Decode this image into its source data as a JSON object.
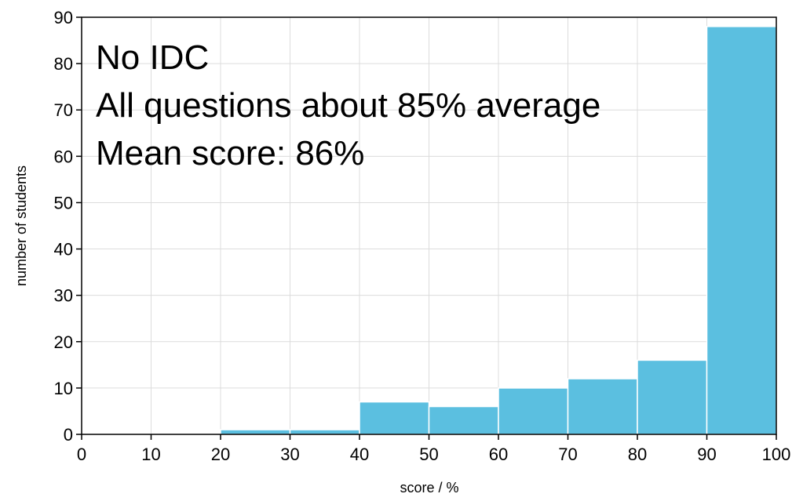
{
  "chart_data": {
    "type": "bar",
    "title": "",
    "xlabel": "score / %",
    "ylabel": "number of students",
    "xlim": [
      0,
      100
    ],
    "ylim": [
      0,
      90
    ],
    "xticks": [
      0,
      10,
      20,
      30,
      40,
      50,
      60,
      70,
      80,
      90,
      100
    ],
    "yticks": [
      0,
      10,
      20,
      30,
      40,
      50,
      60,
      70,
      80,
      90
    ],
    "grid": true,
    "bar_color": "#5bbfe0",
    "bins": [
      {
        "from": 0,
        "to": 10,
        "value": 0
      },
      {
        "from": 10,
        "to": 20,
        "value": 0
      },
      {
        "from": 20,
        "to": 30,
        "value": 1
      },
      {
        "from": 30,
        "to": 40,
        "value": 1
      },
      {
        "from": 40,
        "to": 50,
        "value": 7
      },
      {
        "from": 50,
        "to": 60,
        "value": 6
      },
      {
        "from": 60,
        "to": 70,
        "value": 10
      },
      {
        "from": 70,
        "to": 80,
        "value": 12
      },
      {
        "from": 80,
        "to": 90,
        "value": 16
      },
      {
        "from": 90,
        "to": 100,
        "value": 88
      }
    ],
    "annotations": [
      "No IDC",
      "All questions about 85% average",
      "Mean score: 86%"
    ]
  }
}
